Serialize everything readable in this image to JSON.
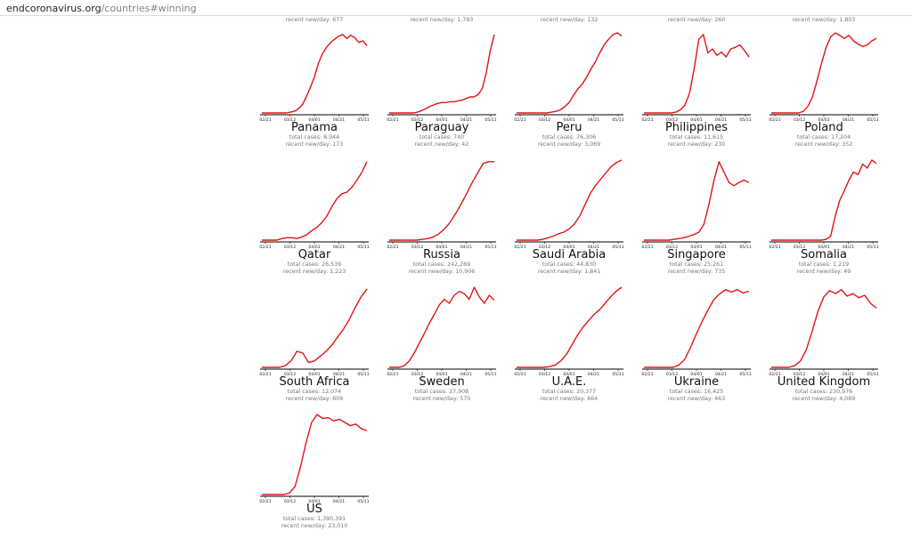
{
  "browser": {
    "url_domain": "endcoronavirus.org",
    "url_path": "/countries#winning"
  },
  "top_row_stats": [
    "recent new/day: 677",
    "recent new/day: 1,793",
    "recent new/day: 132",
    "recent new/day: 260",
    "recent new/day: 1,803"
  ],
  "axis_ticks": [
    "02/21",
    "03/12",
    "04/01",
    "04/21",
    "05/11"
  ],
  "countries": [
    {
      "name": "Panama",
      "total": "total cases: 8,944",
      "recent": "recent new/day: 173"
    },
    {
      "name": "Paraguay",
      "total": "total cases: 740",
      "recent": "recent new/day: 42"
    },
    {
      "name": "Peru",
      "total": "total cases: 76,306",
      "recent": "recent new/day: 3,069"
    },
    {
      "name": "Philippines",
      "total": "total cases: 11,615",
      "recent": "recent new/day: 230"
    },
    {
      "name": "Poland",
      "total": "total cases: 17,204",
      "recent": "recent new/day: 352"
    },
    {
      "name": "Qatar",
      "total": "total cases: 26,539",
      "recent": "recent new/day: 1,223"
    },
    {
      "name": "Russia",
      "total": "total cases: 242,269",
      "recent": "recent new/day: 10,906"
    },
    {
      "name": "Saudi Arabia",
      "total": "total cases: 44,830",
      "recent": "recent new/day: 1,841"
    },
    {
      "name": "Singapore",
      "total": "total cases: 25,261",
      "recent": "recent new/day: 735"
    },
    {
      "name": "Somalia",
      "total": "total cases: 1,219",
      "recent": "recent new/day: 49"
    },
    {
      "name": "South Africa",
      "total": "total cases: 12,074",
      "recent": "recent new/day: 609"
    },
    {
      "name": "Sweden",
      "total": "total cases: 27,908",
      "recent": "recent new/day: 570"
    },
    {
      "name": "U.A.E.",
      "total": "total cases: 20,377",
      "recent": "recent new/day: 664"
    },
    {
      "name": "Ukraine",
      "total": "total cases: 16,425",
      "recent": "recent new/day: 463"
    },
    {
      "name": "United Kingdom",
      "total": "total cases: 230,976",
      "recent": "recent new/day: 4,089"
    },
    {
      "name": "US",
      "total": "total cases: 1,390,391",
      "recent": "recent new/day: 23,010"
    }
  ],
  "chart_data": [
    {
      "type": "line",
      "series": [
        {
          "values": [
            0,
            0,
            0,
            0,
            0,
            0,
            0,
            0.01,
            0.02,
            0.05,
            0.1,
            0.2,
            0.32,
            0.45,
            0.62,
            0.74,
            0.82,
            0.88,
            0.92,
            0.96,
            0.98,
            0.93,
            0.97,
            0.94,
            0.88,
            0.9,
            0.84
          ]
        }
      ]
    },
    {
      "type": "line",
      "series": [
        {
          "values": [
            0,
            0,
            0,
            0,
            0,
            0,
            0,
            0.01,
            0.03,
            0.05,
            0.08,
            0.1,
            0.12,
            0.13,
            0.13,
            0.14,
            0.14,
            0.15,
            0.16,
            0.18,
            0.2,
            0.2,
            0.23,
            0.3,
            0.5,
            0.78,
            0.98
          ]
        }
      ]
    },
    {
      "type": "line",
      "series": [
        {
          "values": [
            0,
            0,
            0,
            0,
            0,
            0,
            0,
            0,
            0.01,
            0.02,
            0.04,
            0.08,
            0.13,
            0.22,
            0.3,
            0.36,
            0.45,
            0.55,
            0.64,
            0.75,
            0.85,
            0.92,
            0.98,
            1.0,
            0.96
          ]
        }
      ]
    },
    {
      "type": "line",
      "series": [
        {
          "values": [
            0,
            0,
            0,
            0,
            0,
            0,
            0,
            0.01,
            0.04,
            0.1,
            0.25,
            0.55,
            0.92,
            0.98,
            0.75,
            0.8,
            0.72,
            0.76,
            0.7,
            0.8,
            0.82,
            0.85,
            0.78,
            0.7
          ]
        }
      ]
    },
    {
      "type": "line",
      "series": [
        {
          "values": [
            0,
            0,
            0,
            0,
            0,
            0,
            0,
            0.02,
            0.08,
            0.2,
            0.4,
            0.62,
            0.82,
            0.95,
            1.0,
            0.97,
            0.93,
            0.97,
            0.9,
            0.86,
            0.83,
            0.85,
            0.9,
            0.93
          ]
        }
      ]
    },
    {
      "type": "line",
      "series": [
        {
          "values": [
            0,
            0,
            0,
            0,
            0.02,
            0.03,
            0.03,
            0.02,
            0.04,
            0.07,
            0.12,
            0.16,
            0.22,
            0.3,
            0.42,
            0.52,
            0.58,
            0.6,
            0.66,
            0.75,
            0.85,
            0.98
          ]
        }
      ]
    },
    {
      "type": "line",
      "series": [
        {
          "values": [
            0,
            0,
            0,
            0,
            0,
            0,
            0.01,
            0.02,
            0.04,
            0.08,
            0.14,
            0.22,
            0.33,
            0.45,
            0.58,
            0.72,
            0.84,
            0.96,
            0.98,
            0.98
          ]
        }
      ]
    },
    {
      "type": "line",
      "series": [
        {
          "values": [
            0,
            0,
            0,
            0,
            0,
            0.01,
            0.03,
            0.05,
            0.08,
            0.1,
            0.14,
            0.2,
            0.3,
            0.44,
            0.58,
            0.68,
            0.76,
            0.84,
            0.92,
            0.97,
            1.0
          ]
        }
      ]
    },
    {
      "type": "line",
      "series": [
        {
          "values": [
            0,
            0,
            0,
            0,
            0,
            0,
            0.01,
            0.02,
            0.03,
            0.05,
            0.07,
            0.1,
            0.2,
            0.45,
            0.75,
            0.98,
            0.85,
            0.72,
            0.68,
            0.72,
            0.75,
            0.72
          ]
        }
      ]
    },
    {
      "type": "line",
      "series": [
        {
          "values": [
            0,
            0,
            0,
            0,
            0,
            0,
            0,
            0,
            0,
            0,
            0,
            0,
            0.01,
            0.05,
            0.3,
            0.5,
            0.62,
            0.75,
            0.85,
            0.82,
            0.95,
            0.9,
            1.0,
            0.96
          ]
        }
      ]
    },
    {
      "type": "line",
      "series": [
        {
          "values": [
            0,
            0,
            0,
            0,
            0.02,
            0.08,
            0.2,
            0.18,
            0.06,
            0.08,
            0.14,
            0.2,
            0.28,
            0.38,
            0.48,
            0.6,
            0.75,
            0.88,
            0.98
          ]
        }
      ]
    },
    {
      "type": "line",
      "series": [
        {
          "values": [
            0,
            0,
            0,
            0.02,
            0.08,
            0.18,
            0.3,
            0.42,
            0.55,
            0.66,
            0.78,
            0.85,
            0.8,
            0.9,
            0.95,
            0.92,
            0.85,
            1.0,
            0.88,
            0.8,
            0.9,
            0.84
          ]
        }
      ]
    },
    {
      "type": "line",
      "series": [
        {
          "values": [
            0,
            0,
            0,
            0,
            0,
            0,
            0.01,
            0.03,
            0.08,
            0.16,
            0.28,
            0.4,
            0.5,
            0.58,
            0.66,
            0.72,
            0.8,
            0.88,
            0.95,
            1.0
          ]
        }
      ]
    },
    {
      "type": "line",
      "series": [
        {
          "values": [
            0,
            0,
            0,
            0,
            0,
            0,
            0.03,
            0.1,
            0.25,
            0.42,
            0.58,
            0.72,
            0.85,
            0.92,
            0.97,
            0.94,
            0.97,
            0.93,
            0.95
          ]
        }
      ]
    },
    {
      "type": "line",
      "series": [
        {
          "values": [
            0,
            0,
            0,
            0,
            0.02,
            0.08,
            0.22,
            0.45,
            0.7,
            0.88,
            0.96,
            0.92,
            0.97,
            0.89,
            0.92,
            0.87,
            0.9,
            0.8,
            0.74
          ]
        }
      ]
    },
    {
      "type": "line",
      "series": [
        {
          "values": [
            0,
            0,
            0,
            0,
            0,
            0.02,
            0.1,
            0.35,
            0.65,
            0.9,
            1.0,
            0.95,
            0.96,
            0.92,
            0.94,
            0.9,
            0.86,
            0.88,
            0.82,
            0.8
          ]
        }
      ]
    }
  ]
}
